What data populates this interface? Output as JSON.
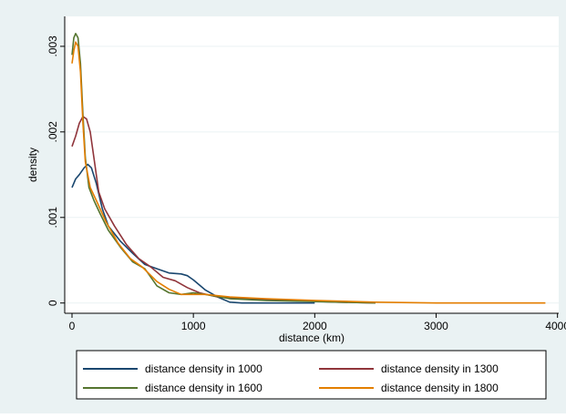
{
  "chart_data": {
    "type": "line",
    "title": "",
    "xlabel": "distance (km)",
    "ylabel": "density",
    "xlim": [
      -60,
      4010
    ],
    "ylim": [
      -0.00012,
      0.00335
    ],
    "x_ticks": [
      0,
      1000,
      2000,
      3000,
      4000
    ],
    "x_tick_labels": [
      "0",
      "1000",
      "2000",
      "3000",
      "4000"
    ],
    "y_ticks": [
      0,
      0.001,
      0.002,
      0.003
    ],
    "y_tick_labels": [
      "0",
      ".001",
      ".002",
      ".003"
    ],
    "grid": "horizontal",
    "legend_position": "bottom",
    "series": [
      {
        "name": "distance density in 1000",
        "color": "#1a476f",
        "points": [
          [
            0,
            0.00135
          ],
          [
            30,
            0.00145
          ],
          [
            60,
            0.0015
          ],
          [
            100,
            0.00158
          ],
          [
            130,
            0.00162
          ],
          [
            160,
            0.00158
          ],
          [
            200,
            0.0014
          ],
          [
            250,
            0.0011
          ],
          [
            300,
            0.0009
          ],
          [
            400,
            0.00072
          ],
          [
            500,
            0.00058
          ],
          [
            600,
            0.00045
          ],
          [
            700,
            0.0004
          ],
          [
            800,
            0.00035
          ],
          [
            900,
            0.00034
          ],
          [
            950,
            0.00032
          ],
          [
            1000,
            0.00027
          ],
          [
            1100,
            0.00015
          ],
          [
            1200,
            7e-05
          ],
          [
            1300,
            1e-05
          ],
          [
            1400,
            0.0
          ],
          [
            1600,
            0.0
          ],
          [
            1800,
            0.0
          ],
          [
            2000,
            0.0
          ]
        ]
      },
      {
        "name": "distance density in 1300",
        "color": "#90353b",
        "points": [
          [
            0,
            0.00183
          ],
          [
            30,
            0.00195
          ],
          [
            60,
            0.0021
          ],
          [
            90,
            0.00218
          ],
          [
            120,
            0.00215
          ],
          [
            150,
            0.002
          ],
          [
            180,
            0.0017
          ],
          [
            220,
            0.0013
          ],
          [
            270,
            0.0011
          ],
          [
            350,
            0.0009
          ],
          [
            450,
            0.00068
          ],
          [
            550,
            0.00052
          ],
          [
            650,
            0.00042
          ],
          [
            750,
            0.0003
          ],
          [
            850,
            0.00026
          ],
          [
            950,
            0.00018
          ],
          [
            1050,
            0.00012
          ],
          [
            1200,
            7e-05
          ],
          [
            1400,
            5e-05
          ],
          [
            1600,
            4e-05
          ],
          [
            1800,
            3e-05
          ],
          [
            2000,
            2e-05
          ],
          [
            2200,
            1e-05
          ],
          [
            2500,
            0.0
          ]
        ]
      },
      {
        "name": "distance density in 1600",
        "color": "#55752f",
        "points": [
          [
            0,
            0.0029
          ],
          [
            15,
            0.0031
          ],
          [
            30,
            0.00315
          ],
          [
            50,
            0.0031
          ],
          [
            70,
            0.0028
          ],
          [
            90,
            0.0022
          ],
          [
            110,
            0.0017
          ],
          [
            140,
            0.00135
          ],
          [
            180,
            0.0012
          ],
          [
            230,
            0.00105
          ],
          [
            300,
            0.00085
          ],
          [
            400,
            0.00065
          ],
          [
            500,
            0.00048
          ],
          [
            600,
            0.0004
          ],
          [
            700,
            0.0002
          ],
          [
            800,
            0.00012
          ],
          [
            900,
            0.0001
          ],
          [
            1000,
            0.00012
          ],
          [
            1100,
            0.0001
          ],
          [
            1300,
            5e-05
          ],
          [
            1600,
            3e-05
          ],
          [
            1900,
            2e-05
          ],
          [
            2200,
            1e-05
          ],
          [
            2500,
            0.0
          ]
        ]
      },
      {
        "name": "distance density in 1800",
        "color": "#e37e00",
        "points": [
          [
            0,
            0.0028
          ],
          [
            15,
            0.00295
          ],
          [
            30,
            0.00305
          ],
          [
            50,
            0.003
          ],
          [
            70,
            0.0027
          ],
          [
            90,
            0.0021
          ],
          [
            110,
            0.00165
          ],
          [
            150,
            0.00135
          ],
          [
            200,
            0.0012
          ],
          [
            280,
            0.00095
          ],
          [
            380,
            0.0007
          ],
          [
            480,
            0.00052
          ],
          [
            580,
            0.00042
          ],
          [
            700,
            0.00025
          ],
          [
            800,
            0.00016
          ],
          [
            900,
            0.0001
          ],
          [
            1000,
            0.0001
          ],
          [
            1100,
            0.0001
          ],
          [
            1300,
            7e-05
          ],
          [
            1600,
            5e-05
          ],
          [
            2000,
            3e-05
          ],
          [
            2500,
            1e-05
          ],
          [
            3000,
            0.0
          ],
          [
            3500,
            0.0
          ],
          [
            3900,
            0.0
          ]
        ]
      }
    ]
  }
}
